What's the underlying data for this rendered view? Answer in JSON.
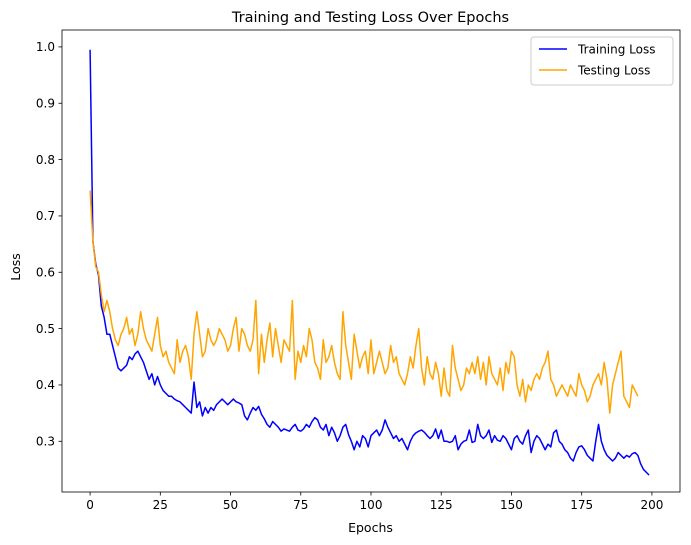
{
  "chart_data": {
    "type": "line",
    "title": "Training and Testing Loss Over Epochs",
    "xlabel": "Epochs",
    "ylabel": "Loss",
    "xlim": [
      -10,
      210
    ],
    "ylim": [
      0.21,
      1.03
    ],
    "xticks": [
      0,
      25,
      50,
      75,
      100,
      125,
      150,
      175,
      200
    ],
    "yticks": [
      0.3,
      0.4,
      0.5,
      0.6,
      0.7,
      0.8,
      0.9,
      1.0
    ],
    "ytick_labels": [
      "0.3",
      "0.4",
      "0.5",
      "0.6",
      "0.7",
      "0.8",
      "0.9",
      "1.0"
    ],
    "grid": false,
    "legend_position": "top-right",
    "series": [
      {
        "name": "Training Loss",
        "color": "#0000ff",
        "values": [
          0.995,
          0.655,
          0.615,
          0.595,
          0.54,
          0.52,
          0.49,
          0.49,
          0.47,
          0.45,
          0.43,
          0.425,
          0.43,
          0.435,
          0.45,
          0.445,
          0.455,
          0.46,
          0.45,
          0.44,
          0.425,
          0.41,
          0.42,
          0.4,
          0.415,
          0.4,
          0.39,
          0.385,
          0.38,
          0.38,
          0.375,
          0.372,
          0.37,
          0.365,
          0.36,
          0.355,
          0.35,
          0.405,
          0.36,
          0.37,
          0.345,
          0.36,
          0.35,
          0.36,
          0.355,
          0.365,
          0.37,
          0.375,
          0.37,
          0.365,
          0.37,
          0.375,
          0.37,
          0.368,
          0.365,
          0.345,
          0.338,
          0.35,
          0.36,
          0.355,
          0.362,
          0.348,
          0.34,
          0.33,
          0.325,
          0.335,
          0.33,
          0.325,
          0.318,
          0.322,
          0.32,
          0.318,
          0.325,
          0.33,
          0.32,
          0.318,
          0.322,
          0.33,
          0.325,
          0.335,
          0.342,
          0.338,
          0.325,
          0.32,
          0.33,
          0.31,
          0.325,
          0.315,
          0.3,
          0.31,
          0.325,
          0.33,
          0.312,
          0.3,
          0.285,
          0.3,
          0.29,
          0.31,
          0.305,
          0.29,
          0.31,
          0.315,
          0.32,
          0.31,
          0.32,
          0.338,
          0.325,
          0.315,
          0.305,
          0.31,
          0.3,
          0.305,
          0.295,
          0.285,
          0.3,
          0.31,
          0.315,
          0.318,
          0.32,
          0.316,
          0.31,
          0.305,
          0.31,
          0.322,
          0.305,
          0.32,
          0.3,
          0.3,
          0.298,
          0.3,
          0.31,
          0.285,
          0.295,
          0.3,
          0.302,
          0.32,
          0.298,
          0.3,
          0.33,
          0.31,
          0.305,
          0.31,
          0.32,
          0.298,
          0.31,
          0.302,
          0.3,
          0.31,
          0.305,
          0.295,
          0.285,
          0.305,
          0.31,
          0.3,
          0.295,
          0.31,
          0.32,
          0.28,
          0.3,
          0.31,
          0.305,
          0.295,
          0.285,
          0.295,
          0.29,
          0.315,
          0.32,
          0.3,
          0.295,
          0.285,
          0.28,
          0.27,
          0.265,
          0.28,
          0.29,
          0.292,
          0.285,
          0.275,
          0.27,
          0.265,
          0.3,
          0.33,
          0.3,
          0.285,
          0.275,
          0.27,
          0.265,
          0.27,
          0.28,
          0.275,
          0.27,
          0.275,
          0.272,
          0.278,
          0.28,
          0.275,
          0.26,
          0.25,
          0.245,
          0.24
        ]
      },
      {
        "name": "Testing Loss",
        "color": "#ffa500",
        "values": [
          0.745,
          0.655,
          0.61,
          0.6,
          0.56,
          0.53,
          0.55,
          0.53,
          0.5,
          0.48,
          0.47,
          0.49,
          0.5,
          0.52,
          0.49,
          0.5,
          0.47,
          0.49,
          0.53,
          0.5,
          0.48,
          0.47,
          0.46,
          0.49,
          0.52,
          0.47,
          0.45,
          0.46,
          0.44,
          0.43,
          0.42,
          0.48,
          0.44,
          0.46,
          0.47,
          0.45,
          0.41,
          0.49,
          0.53,
          0.49,
          0.45,
          0.46,
          0.5,
          0.48,
          0.47,
          0.48,
          0.5,
          0.49,
          0.48,
          0.46,
          0.47,
          0.5,
          0.52,
          0.46,
          0.5,
          0.49,
          0.47,
          0.46,
          0.48,
          0.55,
          0.42,
          0.49,
          0.44,
          0.48,
          0.51,
          0.45,
          0.5,
          0.47,
          0.44,
          0.48,
          0.47,
          0.46,
          0.55,
          0.41,
          0.46,
          0.44,
          0.47,
          0.45,
          0.5,
          0.48,
          0.44,
          0.43,
          0.41,
          0.48,
          0.44,
          0.45,
          0.47,
          0.44,
          0.42,
          0.41,
          0.53,
          0.47,
          0.44,
          0.41,
          0.49,
          0.46,
          0.43,
          0.45,
          0.46,
          0.42,
          0.48,
          0.42,
          0.44,
          0.46,
          0.44,
          0.42,
          0.43,
          0.47,
          0.44,
          0.45,
          0.42,
          0.41,
          0.4,
          0.42,
          0.45,
          0.43,
          0.47,
          0.5,
          0.43,
          0.4,
          0.45,
          0.42,
          0.41,
          0.44,
          0.42,
          0.38,
          0.43,
          0.39,
          0.38,
          0.47,
          0.43,
          0.41,
          0.39,
          0.4,
          0.43,
          0.42,
          0.44,
          0.42,
          0.45,
          0.41,
          0.44,
          0.4,
          0.45,
          0.42,
          0.41,
          0.4,
          0.43,
          0.39,
          0.44,
          0.42,
          0.46,
          0.45,
          0.4,
          0.38,
          0.41,
          0.37,
          0.4,
          0.39,
          0.41,
          0.42,
          0.41,
          0.43,
          0.44,
          0.46,
          0.41,
          0.4,
          0.38,
          0.39,
          0.4,
          0.39,
          0.38,
          0.4,
          0.39,
          0.38,
          0.42,
          0.4,
          0.39,
          0.37,
          0.38,
          0.4,
          0.41,
          0.42,
          0.4,
          0.44,
          0.41,
          0.35,
          0.4,
          0.42,
          0.44,
          0.46,
          0.38,
          0.37,
          0.36,
          0.4,
          0.39,
          0.38
        ]
      }
    ]
  }
}
